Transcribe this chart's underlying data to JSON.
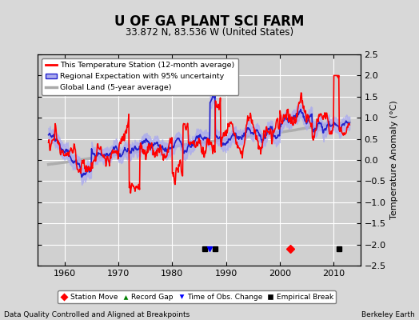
{
  "title": "U OF GA PLANT SCI FARM",
  "subtitle": "33.872 N, 83.536 W (United States)",
  "ylabel": "Temperature Anomaly (°C)",
  "footer_left": "Data Quality Controlled and Aligned at Breakpoints",
  "footer_right": "Berkeley Earth",
  "ylim": [
    -2.5,
    2.5
  ],
  "xlim": [
    1955,
    2015
  ],
  "yticks": [
    -2.5,
    -2,
    -1.5,
    -1,
    -0.5,
    0,
    0.5,
    1,
    1.5,
    2,
    2.5
  ],
  "xticks": [
    1960,
    1970,
    1980,
    1990,
    2000,
    2010
  ],
  "bg_color": "#d8d8d8",
  "plot_bg_color": "#d0d0d0",
  "grid_color": "#ffffff",
  "station_color": "#ff0000",
  "regional_color": "#2222cc",
  "regional_fill_color": "#aaaaee",
  "global_color": "#aaaaaa",
  "empirical_break_years": [
    1986,
    1988,
    2011
  ],
  "station_move_years": [
    2002
  ],
  "time_obs_change_years": [
    1987
  ],
  "seed": 42
}
